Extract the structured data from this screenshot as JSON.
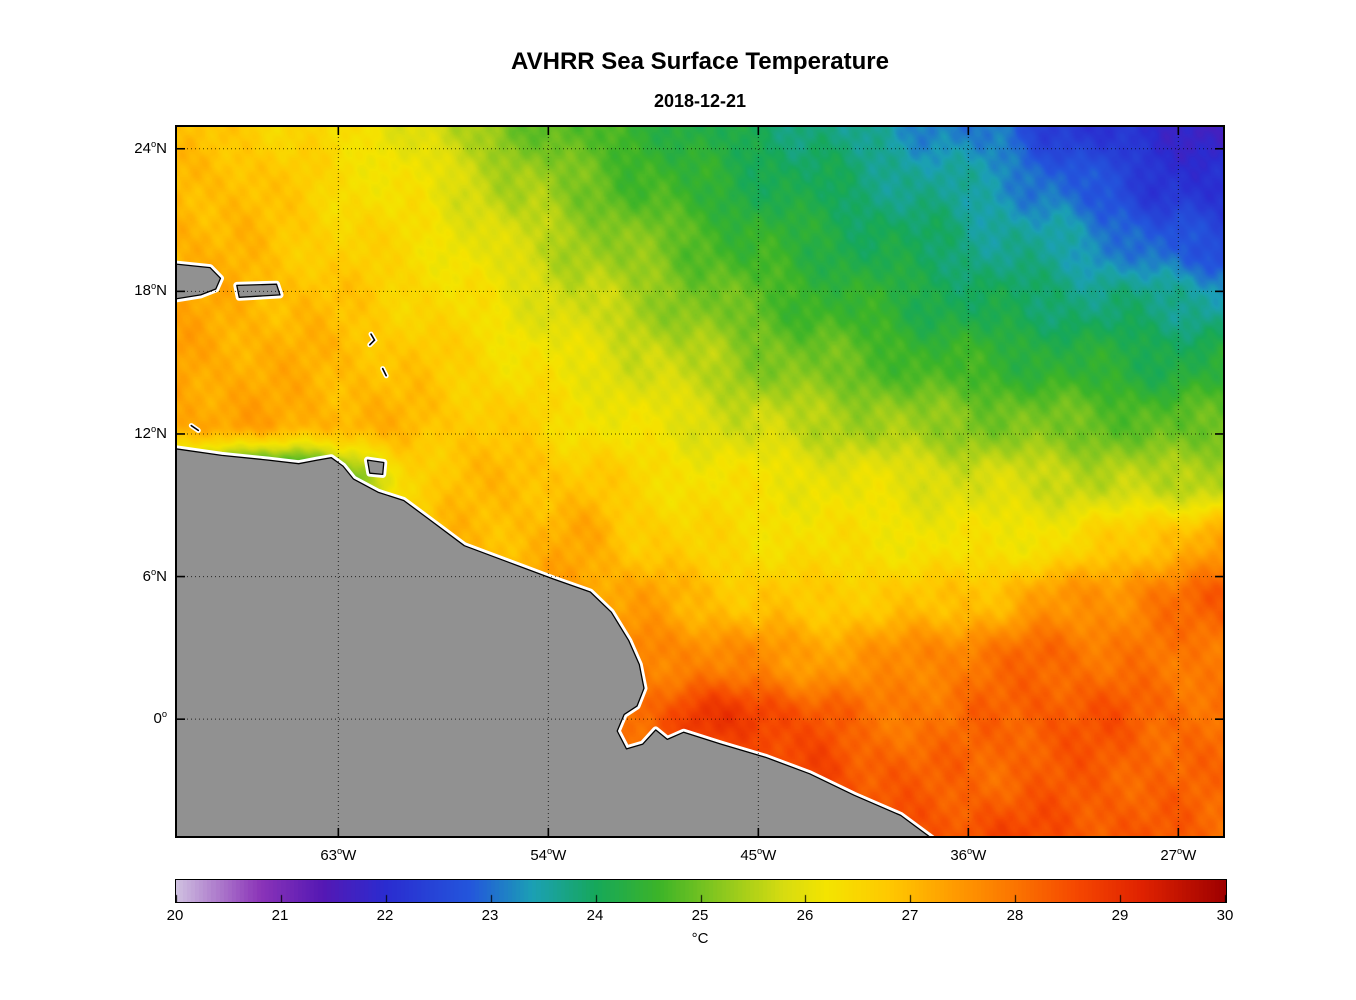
{
  "figure": {
    "title": "AVHRR Sea Surface Temperature",
    "subtitle": "2018-12-21"
  },
  "chart_data": {
    "type": "heatmap",
    "title": "AVHRR Sea Surface Temperature",
    "subtitle": "2018-12-21",
    "units": "°C",
    "lon_w_range": [
      70,
      25
    ],
    "lat_range": [
      25,
      -5
    ],
    "grid_on": true,
    "x_ticks": [
      {
        "label": "63°W",
        "lon_w": 63
      },
      {
        "label": "54°W",
        "lon_w": 54
      },
      {
        "label": "45°W",
        "lon_w": 45
      },
      {
        "label": "36°W",
        "lon_w": 36
      },
      {
        "label": "27°W",
        "lon_w": 27
      }
    ],
    "y_ticks": [
      {
        "label": "24°N",
        "lat": 24
      },
      {
        "label": "18°N",
        "lat": 18
      },
      {
        "label": "12°N",
        "lat": 12
      },
      {
        "label": "6°N",
        "lat": 6
      },
      {
        "label": "0°",
        "lat": 0
      }
    ],
    "grid": {
      "lon_w": [
        70,
        25
      ],
      "lat": [
        25,
        -5
      ],
      "ncols": 19,
      "nrows": 13,
      "sst_c": [
        [
          26.8,
          26.8,
          26.5,
          26.3,
          26.0,
          25.4,
          25.0,
          24.7,
          24.5,
          24.2,
          24.0,
          23.8,
          23.5,
          23.2,
          23.0,
          22.4,
          22.1,
          21.9,
          21.7
        ],
        [
          27.0,
          27.0,
          26.7,
          26.4,
          26.2,
          25.8,
          25.4,
          25.0,
          24.7,
          24.4,
          24.2,
          24.0,
          23.8,
          23.6,
          23.4,
          23.0,
          22.6,
          22.2,
          22.0
        ],
        [
          27.2,
          27.0,
          26.8,
          26.6,
          26.4,
          26.1,
          25.7,
          25.4,
          25.1,
          24.8,
          24.5,
          24.3,
          24.1,
          23.9,
          23.7,
          23.5,
          23.2,
          22.8,
          22.5
        ],
        [
          27.2,
          27.1,
          27.0,
          26.8,
          26.6,
          26.3,
          26.0,
          25.7,
          25.4,
          25.1,
          24.8,
          24.6,
          24.4,
          24.2,
          24.0,
          23.9,
          23.8,
          23.7,
          23.6
        ],
        [
          27.3,
          27.2,
          27.1,
          27.0,
          26.8,
          26.6,
          26.3,
          26.0,
          25.8,
          25.5,
          25.2,
          25.0,
          24.8,
          24.6,
          24.5,
          24.4,
          24.3,
          24.2,
          24.3
        ],
        [
          27.3,
          27.3,
          27.2,
          27.1,
          27.0,
          26.8,
          26.6,
          26.3,
          26.1,
          25.9,
          25.7,
          25.5,
          25.4,
          25.2,
          25.1,
          25.0,
          24.9,
          24.8,
          24.9
        ],
        [
          25.0,
          23.6,
          23.8,
          24.8,
          26.6,
          26.9,
          27.0,
          26.8,
          26.5,
          26.3,
          26.2,
          26.1,
          26.0,
          25.9,
          25.8,
          25.7,
          25.6,
          25.5,
          25.6
        ],
        [
          26.0,
          26.0,
          26.2,
          26.5,
          26.8,
          27.0,
          27.0,
          27.2,
          26.8,
          26.5,
          26.4,
          26.3,
          26.3,
          26.2,
          26.2,
          26.3,
          26.6,
          27.0,
          27.3
        ],
        [
          26.5,
          26.5,
          26.5,
          26.8,
          27.0,
          27.2,
          27.3,
          27.4,
          27.3,
          27.0,
          26.8,
          26.7,
          26.8,
          26.8,
          27.0,
          27.4,
          27.6,
          28.0,
          28.3
        ],
        [
          27.0,
          27.0,
          27.0,
          27.2,
          27.4,
          27.5,
          27.6,
          27.7,
          27.8,
          27.8,
          27.6,
          27.4,
          27.5,
          27.8,
          28.0,
          28.2,
          28.0,
          27.9,
          28.0
        ],
        [
          27.5,
          27.5,
          27.5,
          27.6,
          27.7,
          27.8,
          27.8,
          27.9,
          28.2,
          28.8,
          28.8,
          28.4,
          28.0,
          28.0,
          28.2,
          28.4,
          28.4,
          28.2,
          28.0
        ],
        [
          27.8,
          27.8,
          27.8,
          27.9,
          28.0,
          28.0,
          28.0,
          28.0,
          28.1,
          28.3,
          28.5,
          28.6,
          28.4,
          28.2,
          28.2,
          28.3,
          28.3,
          28.2,
          28.1
        ],
        [
          28.0,
          28.0,
          28.0,
          28.0,
          28.1,
          28.1,
          28.2,
          28.2,
          28.2,
          28.3,
          28.4,
          28.5,
          28.6,
          28.4,
          28.6,
          28.5,
          28.4,
          28.3,
          28.2
        ]
      ]
    },
    "colorbar": {
      "min": 20,
      "max": 30,
      "ticks": [
        20,
        21,
        22,
        23,
        24,
        25,
        26,
        27,
        28,
        29,
        30
      ],
      "label": "°C",
      "stops": [
        {
          "v": 20.0,
          "c": "#cfc0e0"
        },
        {
          "v": 20.8,
          "c": "#8b34b8"
        },
        {
          "v": 21.4,
          "c": "#5418b4"
        },
        {
          "v": 22.0,
          "c": "#2a2cd0"
        },
        {
          "v": 22.8,
          "c": "#2356dc"
        },
        {
          "v": 23.4,
          "c": "#1ba0b4"
        },
        {
          "v": 24.0,
          "c": "#16a85a"
        },
        {
          "v": 24.6,
          "c": "#3cb428"
        },
        {
          "v": 25.2,
          "c": "#8cc81e"
        },
        {
          "v": 25.8,
          "c": "#d8dc10"
        },
        {
          "v": 26.2,
          "c": "#f4e400"
        },
        {
          "v": 26.8,
          "c": "#ffc800"
        },
        {
          "v": 27.4,
          "c": "#ff9c00"
        },
        {
          "v": 28.0,
          "c": "#fb7400"
        },
        {
          "v": 28.6,
          "c": "#f54600"
        },
        {
          "v": 29.2,
          "c": "#e02200"
        },
        {
          "v": 30.0,
          "c": "#9e0000"
        }
      ]
    },
    "land": {
      "fill": "#919191",
      "coast": "#000000",
      "halo": "#ffffff",
      "mainland": [
        [
          70.5,
          11.45
        ],
        [
          68.0,
          11.1
        ],
        [
          66.0,
          10.9
        ],
        [
          64.7,
          10.75
        ],
        [
          63.9,
          10.9
        ],
        [
          63.3,
          11.0
        ],
        [
          62.8,
          10.65
        ],
        [
          62.35,
          10.1
        ],
        [
          61.3,
          9.55
        ],
        [
          60.2,
          9.2
        ],
        [
          59.1,
          8.4
        ],
        [
          57.6,
          7.3
        ],
        [
          55.7,
          6.6
        ],
        [
          53.8,
          5.9
        ],
        [
          52.2,
          5.35
        ],
        [
          51.3,
          4.5
        ],
        [
          50.55,
          3.3
        ],
        [
          50.1,
          2.3
        ],
        [
          49.9,
          1.3
        ],
        [
          50.2,
          0.55
        ],
        [
          50.75,
          0.2
        ],
        [
          51.05,
          -0.5
        ],
        [
          50.65,
          -1.25
        ],
        [
          49.95,
          -1.05
        ],
        [
          49.4,
          -0.45
        ],
        [
          48.9,
          -0.85
        ],
        [
          48.2,
          -0.55
        ],
        [
          46.6,
          -1.05
        ],
        [
          44.7,
          -1.6
        ],
        [
          42.8,
          -2.3
        ],
        [
          40.9,
          -3.2
        ],
        [
          38.9,
          -4.05
        ],
        [
          36.9,
          -5.5
        ],
        [
          70.5,
          -5.5
        ]
      ],
      "islands": [
        [
          [
            70.5,
            19.2
          ],
          [
            68.5,
            19.0
          ],
          [
            68.05,
            18.55
          ],
          [
            68.25,
            18.1
          ],
          [
            68.9,
            17.85
          ],
          [
            70.5,
            17.6
          ]
        ],
        [
          [
            67.35,
            18.25
          ],
          [
            65.65,
            18.3
          ],
          [
            65.5,
            17.85
          ],
          [
            67.25,
            17.75
          ]
        ],
        [
          [
            61.75,
            10.9
          ],
          [
            61.05,
            10.8
          ],
          [
            61.1,
            10.3
          ],
          [
            61.65,
            10.35
          ]
        ]
      ],
      "islets": [
        [
          [
            61.6,
            16.2
          ],
          [
            61.45,
            15.95
          ],
          [
            61.65,
            15.75
          ]
        ],
        [
          [
            61.1,
            14.75
          ],
          [
            60.95,
            14.45
          ]
        ],
        [
          [
            69.3,
            12.35
          ],
          [
            69.0,
            12.15
          ]
        ]
      ]
    }
  }
}
